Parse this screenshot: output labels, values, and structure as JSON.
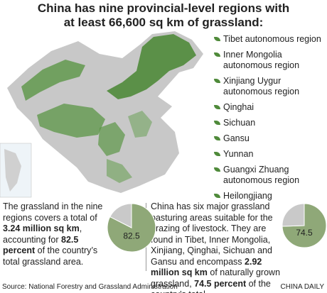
{
  "title": [
    "China has nine provincial-level regions with",
    "at least 66,600 sq km of grassland:"
  ],
  "regions": [
    "Tibet autonomous region",
    "Inner Mongolia autonomous region",
    "Xinjiang Uygur autonomous region",
    "Qinghai",
    "Sichuan",
    "Gansu",
    "Yunnan",
    "Guangxi Zhuang autonomous region",
    "Heilongjiang"
  ],
  "text1": [
    "The grassland in the nine regions covers a total of ",
    "3.24 million sq km",
    ", accounting for ",
    "82.5 percent",
    " of the country’s total grassland area."
  ],
  "text2": [
    "China has six major grassland pasturing areas suitable for the grazing of livestock. They are found in Tibet, Inner Mongolia, Xinjiang, Qinghai, Sichuan and Gansu and encompass ",
    "2.92 million sq km",
    " of naturally grown grassland, ",
    "74.5 percent",
    " of the country’s total."
  ],
  "source": "Source: National Forestry and Grassland Administration",
  "credit": "CHINA DAILY",
  "chart_data": [
    {
      "type": "pie",
      "values": [
        82.5,
        17.5
      ],
      "colors": [
        "#8fa878",
        "#c9c9c9"
      ]
    },
    {
      "type": "pie",
      "values": [
        74.5,
        25.5
      ],
      "colors": [
        "#8fa878",
        "#c9c9c9"
      ]
    }
  ]
}
